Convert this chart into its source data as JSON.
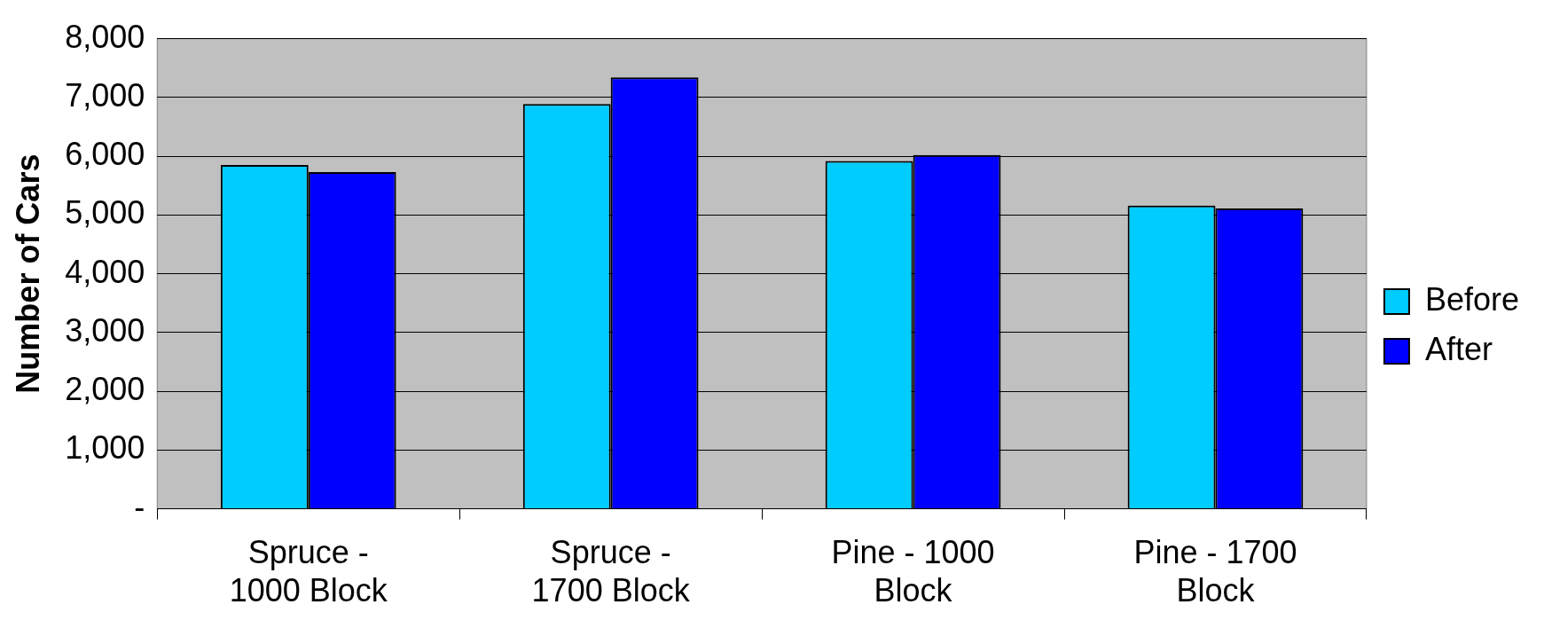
{
  "chart_data": {
    "type": "bar",
    "ylabel": "Number of Cars",
    "categories": [
      "Spruce - 1000 Block",
      "Spruce - 1700 Block",
      "Pine - 1000 Block",
      "Pine - 1700 Block"
    ],
    "series": [
      {
        "name": "Before",
        "color": "#00ccff",
        "values": [
          5850,
          6890,
          5920,
          5160
        ]
      },
      {
        "name": "After",
        "color": "#0000ff",
        "values": [
          5730,
          7340,
          6020,
          5110
        ]
      }
    ],
    "ylim": [
      0,
      8000
    ],
    "yticks": [
      {
        "value": 0,
        "label": "-"
      },
      {
        "value": 1000,
        "label": "1,000"
      },
      {
        "value": 2000,
        "label": "2,000"
      },
      {
        "value": 3000,
        "label": "3,000"
      },
      {
        "value": 4000,
        "label": "4,000"
      },
      {
        "value": 5000,
        "label": "5,000"
      },
      {
        "value": 6000,
        "label": "6,000"
      },
      {
        "value": 7000,
        "label": "7,000"
      },
      {
        "value": 8000,
        "label": "8,000"
      }
    ],
    "grid": "y",
    "legend": "right"
  }
}
